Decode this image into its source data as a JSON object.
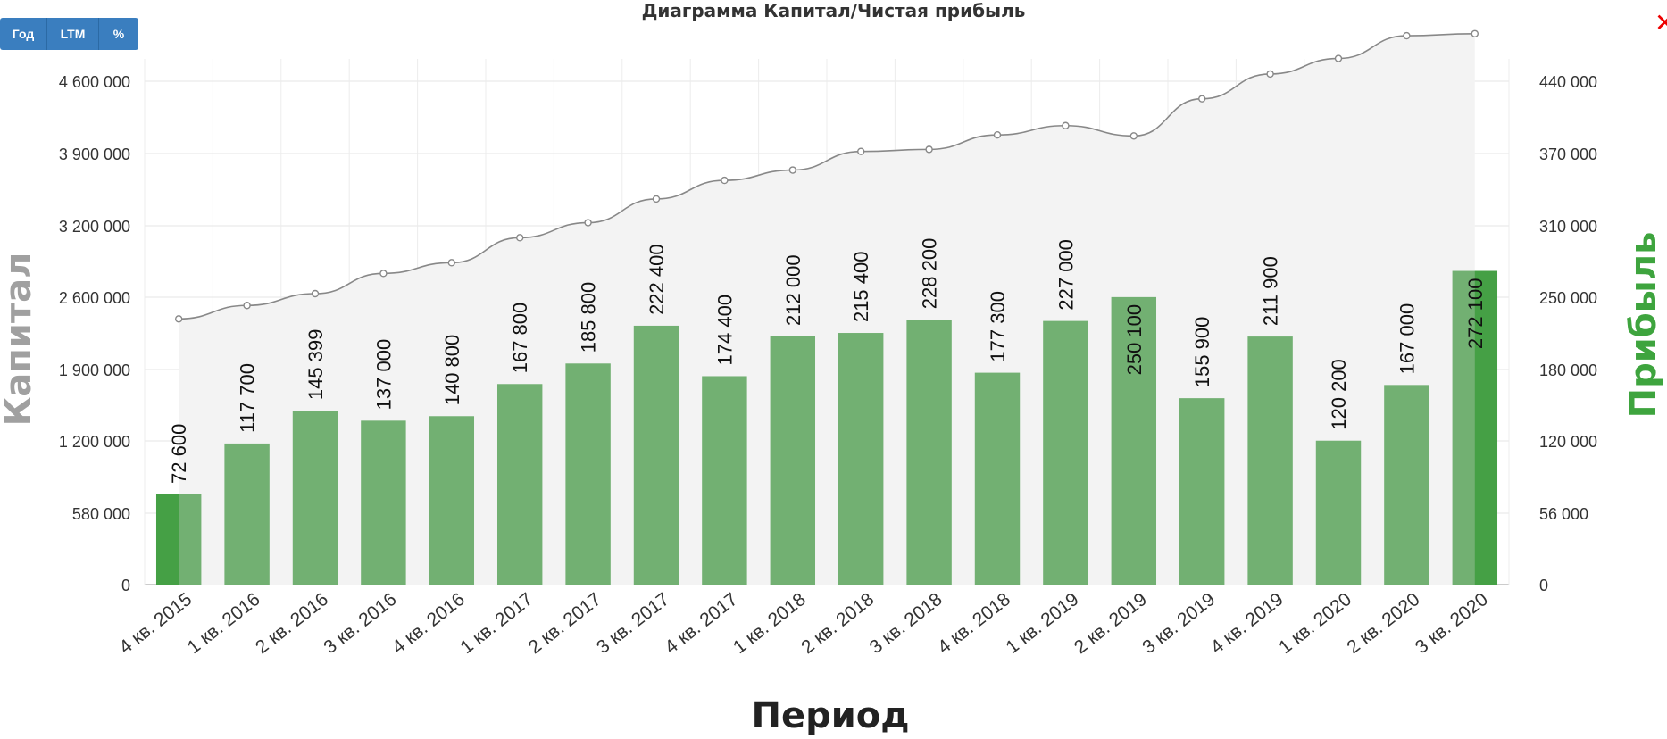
{
  "toolbar": {
    "buttons": [
      {
        "label": "Год"
      },
      {
        "label": "LTM"
      },
      {
        "label": "%"
      }
    ]
  },
  "close_label": "✕",
  "chart_data": {
    "type": "bar+line",
    "title": "Диаграмма Капитал/Чистая прибыль",
    "xlabel": "Период",
    "ylabel_left": "Капитал",
    "ylabel_right": "Прибыль",
    "categories": [
      "4 кв. 2015",
      "1 кв. 2016",
      "2 кв. 2016",
      "3 кв. 2016",
      "4 кв. 2016",
      "1 кв. 2017",
      "2 кв. 2017",
      "3 кв. 2017",
      "4 кв. 2017",
      "1 кв. 2018",
      "2 кв. 2018",
      "3 кв. 2018",
      "4 кв. 2018",
      "1 кв. 2019",
      "2 кв. 2019",
      "3 кв. 2019",
      "4 кв. 2019",
      "1 кв. 2020",
      "2 кв. 2020",
      "3 кв. 2020"
    ],
    "left_ticks": [
      "0",
      "580 000",
      "1 200 000",
      "1 900 000",
      "2 600 000",
      "3 200 000",
      "3 900 000",
      "4 600 000"
    ],
    "right_ticks": [
      "0",
      "56 000",
      "120 000",
      "180 000",
      "250 000",
      "310 000",
      "370 000",
      "440 000"
    ],
    "grid": true,
    "series": [
      {
        "name": "Прибыль",
        "axis": "right",
        "kind": "bar",
        "color": "#72b072",
        "highlight_color": "#45a045",
        "values": [
          72600,
          117700,
          145399,
          137000,
          140800,
          167800,
          185800,
          222400,
          174400,
          212000,
          215400,
          228200,
          177300,
          227000,
          250100,
          155900,
          211900,
          120200,
          167000,
          272100
        ],
        "labels": [
          "72 600",
          "117 700",
          "145 399",
          "137 000",
          "140 800",
          "167 800",
          "185 800",
          "222 400",
          "174 400",
          "212 000",
          "215 400",
          "228 200",
          "177 300",
          "227 000",
          "250 100",
          "155 900",
          "211 900",
          "120 200",
          "167 000",
          "272 100"
        ]
      },
      {
        "name": "Капитал",
        "axis": "left",
        "kind": "area-line",
        "color": "#888888",
        "values": [
          2390000,
          2520000,
          2630000,
          2800000,
          2890000,
          3100000,
          3230000,
          3460000,
          3640000,
          3740000,
          3920000,
          3940000,
          4080000,
          4170000,
          4070000,
          4430000,
          4670000,
          4820000,
          5040000,
          5060000
        ]
      }
    ]
  }
}
